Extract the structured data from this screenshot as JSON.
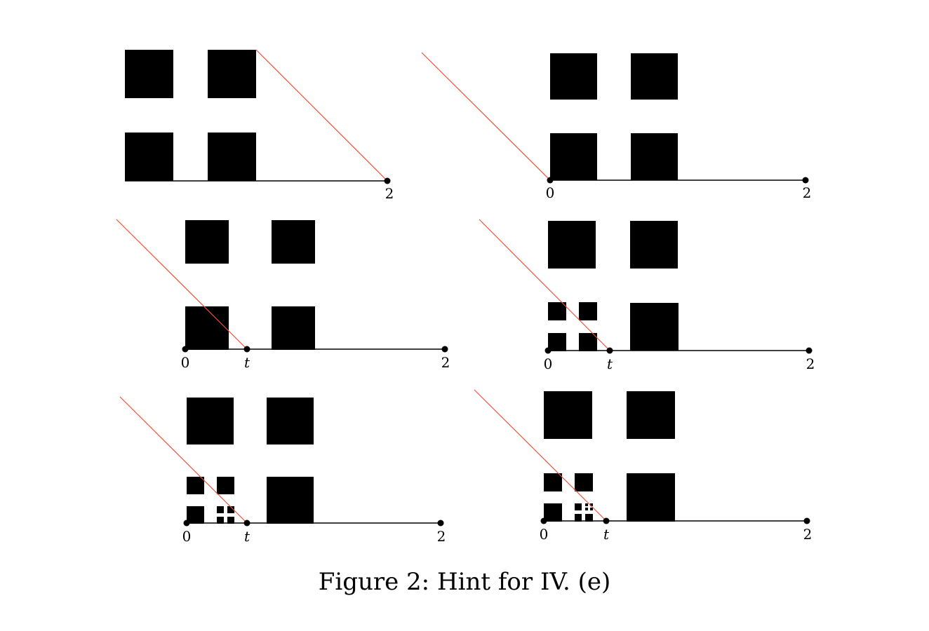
{
  "caption": "Figure 2: Hint for IV. (e)",
  "colors": {
    "squares": "#000000",
    "axis": "#000000",
    "diagonal": "#e8523a"
  },
  "panels": [
    {
      "id": "top-left",
      "labels": {
        "two": "2"
      }
    },
    {
      "id": "top-right",
      "labels": {
        "zero": "0",
        "two": "2"
      }
    },
    {
      "id": "middle-left",
      "labels": {
        "zero": "0",
        "t": "t",
        "two": "2"
      }
    },
    {
      "id": "middle-right",
      "labels": {
        "zero": "0",
        "t": "t",
        "two": "2"
      }
    },
    {
      "id": "bottom-left",
      "labels": {
        "zero": "0",
        "t": "t",
        "two": "2"
      }
    },
    {
      "id": "bottom-right",
      "labels": {
        "zero": "0",
        "t": "t",
        "two": "2"
      }
    }
  ]
}
